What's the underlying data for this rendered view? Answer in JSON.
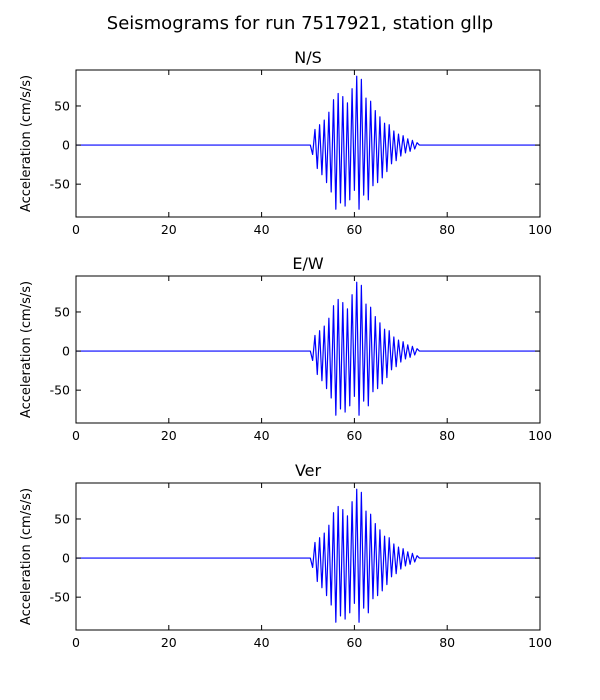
{
  "figure": {
    "title": "Seismograms for run 7517921, station gllp"
  },
  "chart_data": [
    {
      "type": "line",
      "title": "N/S",
      "xlabel": "",
      "ylabel": "Acceleration (cm/s/s)",
      "xlim": [
        0,
        100
      ],
      "ylim": [
        -92,
        96
      ],
      "xticks": [
        0,
        20,
        40,
        60,
        80,
        100
      ],
      "yticks": [
        -50,
        0,
        50
      ],
      "grid": false,
      "line_color": "#0000ff",
      "series": [
        {
          "x": [
            0,
            50.5,
            51.0,
            51.5,
            52.0,
            52.5,
            53.0,
            53.5,
            54.0,
            54.5,
            55.0,
            55.5,
            56.0,
            56.5,
            57.0,
            57.5,
            58.0,
            58.5,
            59.0,
            59.5,
            60.0,
            60.5,
            61.0,
            61.5,
            62.0,
            62.5,
            63.0,
            63.5,
            64.0,
            64.5,
            65.0,
            65.5,
            66.0,
            66.5,
            67.0,
            67.5,
            68.0,
            68.5,
            69.0,
            69.5,
            70.0,
            70.5,
            71.0,
            71.5,
            72.0,
            72.5,
            73.0,
            73.5,
            74.0,
            100
          ],
          "y": [
            0,
            0,
            -12,
            20,
            -30,
            26,
            -38,
            32,
            -48,
            42,
            -60,
            58,
            -82,
            66,
            -74,
            62,
            -78,
            54,
            -70,
            72,
            -58,
            88,
            -82,
            84,
            -64,
            60,
            -70,
            56,
            -52,
            44,
            -48,
            36,
            -42,
            28,
            -34,
            26,
            -24,
            18,
            -20,
            14,
            -14,
            12,
            -10,
            8,
            -8,
            6,
            -5,
            3,
            0,
            0
          ]
        }
      ]
    },
    {
      "type": "line",
      "title": "E/W",
      "xlabel": "",
      "ylabel": "Acceleration (cm/s/s)",
      "xlim": [
        0,
        100
      ],
      "ylim": [
        -92,
        96
      ],
      "xticks": [
        0,
        20,
        40,
        60,
        80,
        100
      ],
      "yticks": [
        -50,
        0,
        50
      ],
      "grid": false,
      "line_color": "#0000ff",
      "series": [
        {
          "x": [
            0,
            50.5,
            51.0,
            51.5,
            52.0,
            52.5,
            53.0,
            53.5,
            54.0,
            54.5,
            55.0,
            55.5,
            56.0,
            56.5,
            57.0,
            57.5,
            58.0,
            58.5,
            59.0,
            59.5,
            60.0,
            60.5,
            61.0,
            61.5,
            62.0,
            62.5,
            63.0,
            63.5,
            64.0,
            64.5,
            65.0,
            65.5,
            66.0,
            66.5,
            67.0,
            67.5,
            68.0,
            68.5,
            69.0,
            69.5,
            70.0,
            70.5,
            71.0,
            71.5,
            72.0,
            72.5,
            73.0,
            73.5,
            74.0,
            100
          ],
          "y": [
            0,
            0,
            -12,
            20,
            -30,
            26,
            -38,
            32,
            -48,
            42,
            -60,
            58,
            -82,
            66,
            -74,
            62,
            -78,
            54,
            -70,
            72,
            -58,
            88,
            -82,
            84,
            -64,
            60,
            -70,
            56,
            -52,
            44,
            -48,
            36,
            -42,
            28,
            -34,
            26,
            -24,
            18,
            -20,
            14,
            -14,
            12,
            -10,
            8,
            -8,
            6,
            -5,
            3,
            0,
            0
          ]
        }
      ]
    },
    {
      "type": "line",
      "title": "Ver",
      "xlabel": "",
      "ylabel": "Acceleration (cm/s/s)",
      "xlim": [
        0,
        100
      ],
      "ylim": [
        -92,
        96
      ],
      "xticks": [
        0,
        20,
        40,
        60,
        80,
        100
      ],
      "yticks": [
        -50,
        0,
        50
      ],
      "grid": false,
      "line_color": "#0000ff",
      "series": [
        {
          "x": [
            0,
            50.5,
            51.0,
            51.5,
            52.0,
            52.5,
            53.0,
            53.5,
            54.0,
            54.5,
            55.0,
            55.5,
            56.0,
            56.5,
            57.0,
            57.5,
            58.0,
            58.5,
            59.0,
            59.5,
            60.0,
            60.5,
            61.0,
            61.5,
            62.0,
            62.5,
            63.0,
            63.5,
            64.0,
            64.5,
            65.0,
            65.5,
            66.0,
            66.5,
            67.0,
            67.5,
            68.0,
            68.5,
            69.0,
            69.5,
            70.0,
            70.5,
            71.0,
            71.5,
            72.0,
            72.5,
            73.0,
            73.5,
            74.0,
            100
          ],
          "y": [
            0,
            0,
            -12,
            20,
            -30,
            26,
            -38,
            32,
            -48,
            42,
            -60,
            58,
            -82,
            66,
            -74,
            62,
            -78,
            54,
            -70,
            72,
            -58,
            88,
            -82,
            84,
            -64,
            60,
            -70,
            56,
            -52,
            44,
            -48,
            36,
            -42,
            28,
            -34,
            26,
            -24,
            18,
            -20,
            14,
            -14,
            12,
            -10,
            8,
            -8,
            6,
            -5,
            3,
            0,
            0
          ]
        }
      ]
    }
  ]
}
